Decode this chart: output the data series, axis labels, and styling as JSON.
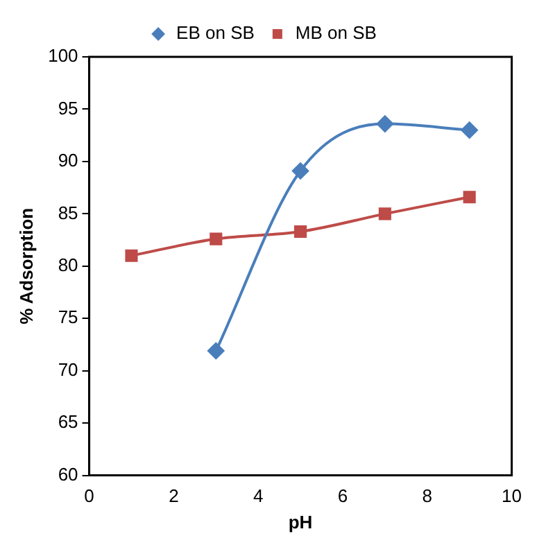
{
  "chart_data": {
    "type": "line",
    "xlabel": "pH",
    "ylabel": "% Adsorption",
    "xlim": [
      0,
      10
    ],
    "xticks": [
      0,
      2,
      4,
      6,
      8,
      10
    ],
    "ylim": [
      60,
      100
    ],
    "yticks": [
      60,
      65,
      70,
      75,
      80,
      85,
      90,
      95,
      100
    ],
    "grid": false,
    "legend": "top",
    "series": [
      {
        "name": "EB on SB",
        "color": "#4a7ebb",
        "marker": "diamond",
        "x": [
          3,
          5,
          7,
          9
        ],
        "values": [
          71.9,
          89.1,
          93.6,
          93.0
        ]
      },
      {
        "name": "MB on SB",
        "color": "#be4b48",
        "marker": "square",
        "x": [
          1,
          3,
          5,
          7,
          9
        ],
        "values": [
          81,
          82.6,
          83.3,
          85,
          86.6
        ]
      }
    ]
  }
}
